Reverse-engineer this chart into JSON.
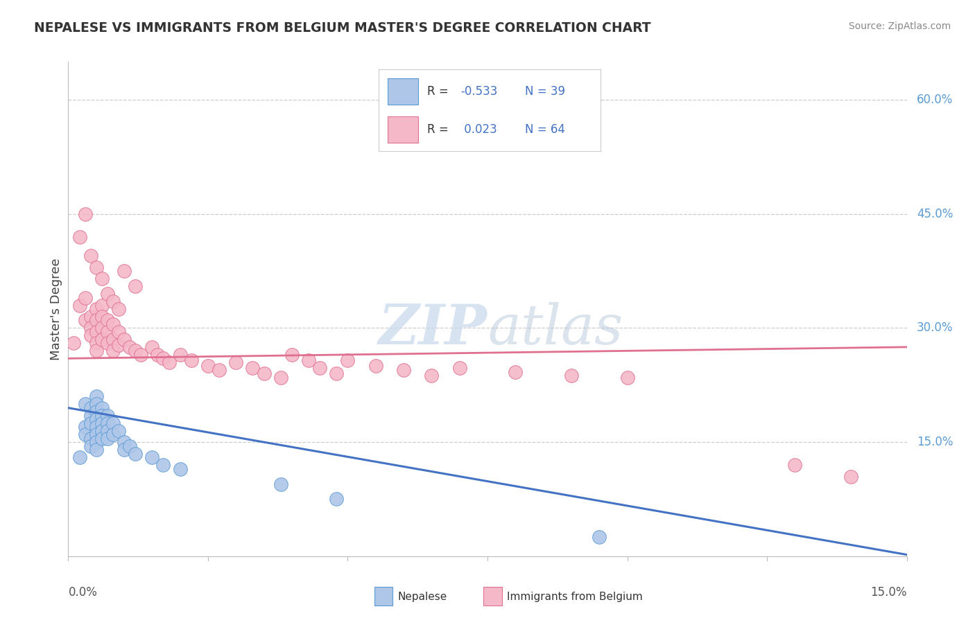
{
  "title": "NEPALESE VS IMMIGRANTS FROM BELGIUM MASTER'S DEGREE CORRELATION CHART",
  "source": "Source: ZipAtlas.com",
  "ylabel": "Master's Degree",
  "right_yticks": [
    "15.0%",
    "30.0%",
    "45.0%",
    "60.0%"
  ],
  "right_ytick_vals": [
    0.15,
    0.3,
    0.45,
    0.6
  ],
  "xlim": [
    0.0,
    0.15
  ],
  "ylim": [
    0.0,
    0.65
  ],
  "blue_color": "#aec6e8",
  "pink_color": "#f5b8c8",
  "blue_edge_color": "#5b9bd5",
  "pink_edge_color": "#e07090",
  "blue_line_color": "#4472c4",
  "pink_line_color": "#e07090",
  "watermark_zip": "ZIP",
  "watermark_atlas": "atlas",
  "watermark_color": "#d0dff0",
  "grid_color": "#cccccc",
  "bg_color": "#ffffff",
  "blue_scatter_x": [
    0.002,
    0.003,
    0.003,
    0.003,
    0.004,
    0.004,
    0.004,
    0.004,
    0.004,
    0.005,
    0.005,
    0.005,
    0.005,
    0.005,
    0.005,
    0.005,
    0.005,
    0.006,
    0.006,
    0.006,
    0.006,
    0.006,
    0.007,
    0.007,
    0.007,
    0.007,
    0.008,
    0.008,
    0.009,
    0.01,
    0.01,
    0.011,
    0.012,
    0.015,
    0.017,
    0.02,
    0.038,
    0.048,
    0.095
  ],
  "blue_scatter_y": [
    0.13,
    0.2,
    0.17,
    0.16,
    0.195,
    0.185,
    0.175,
    0.155,
    0.145,
    0.21,
    0.2,
    0.19,
    0.18,
    0.17,
    0.16,
    0.15,
    0.14,
    0.195,
    0.185,
    0.175,
    0.165,
    0.155,
    0.185,
    0.175,
    0.165,
    0.155,
    0.175,
    0.16,
    0.165,
    0.15,
    0.14,
    0.145,
    0.135,
    0.13,
    0.12,
    0.115,
    0.095,
    0.075,
    0.025
  ],
  "pink_scatter_x": [
    0.001,
    0.002,
    0.003,
    0.003,
    0.004,
    0.004,
    0.004,
    0.005,
    0.005,
    0.005,
    0.005,
    0.005,
    0.006,
    0.006,
    0.006,
    0.006,
    0.007,
    0.007,
    0.007,
    0.008,
    0.008,
    0.008,
    0.009,
    0.009,
    0.01,
    0.011,
    0.012,
    0.013,
    0.015,
    0.016,
    0.017,
    0.018,
    0.02,
    0.022,
    0.025,
    0.027,
    0.03,
    0.033,
    0.035,
    0.038,
    0.04,
    0.043,
    0.045,
    0.048,
    0.05,
    0.055,
    0.06,
    0.065,
    0.07,
    0.08,
    0.09,
    0.1,
    0.002,
    0.003,
    0.004,
    0.005,
    0.006,
    0.007,
    0.008,
    0.009,
    0.01,
    0.012,
    0.14,
    0.13
  ],
  "pink_scatter_y": [
    0.28,
    0.33,
    0.34,
    0.31,
    0.315,
    0.3,
    0.29,
    0.325,
    0.31,
    0.295,
    0.28,
    0.27,
    0.33,
    0.315,
    0.3,
    0.285,
    0.31,
    0.295,
    0.28,
    0.305,
    0.285,
    0.27,
    0.295,
    0.278,
    0.285,
    0.275,
    0.27,
    0.265,
    0.275,
    0.265,
    0.26,
    0.255,
    0.265,
    0.258,
    0.25,
    0.245,
    0.255,
    0.248,
    0.24,
    0.235,
    0.265,
    0.258,
    0.248,
    0.24,
    0.258,
    0.25,
    0.245,
    0.238,
    0.248,
    0.242,
    0.238,
    0.235,
    0.42,
    0.45,
    0.395,
    0.38,
    0.365,
    0.345,
    0.335,
    0.325,
    0.375,
    0.355,
    0.105,
    0.12
  ],
  "blue_trend_x": [
    0.0,
    0.15
  ],
  "blue_trend_y": [
    0.195,
    0.002
  ],
  "pink_trend_x": [
    0.0,
    0.15
  ],
  "pink_trend_y": [
    0.26,
    0.275
  ]
}
